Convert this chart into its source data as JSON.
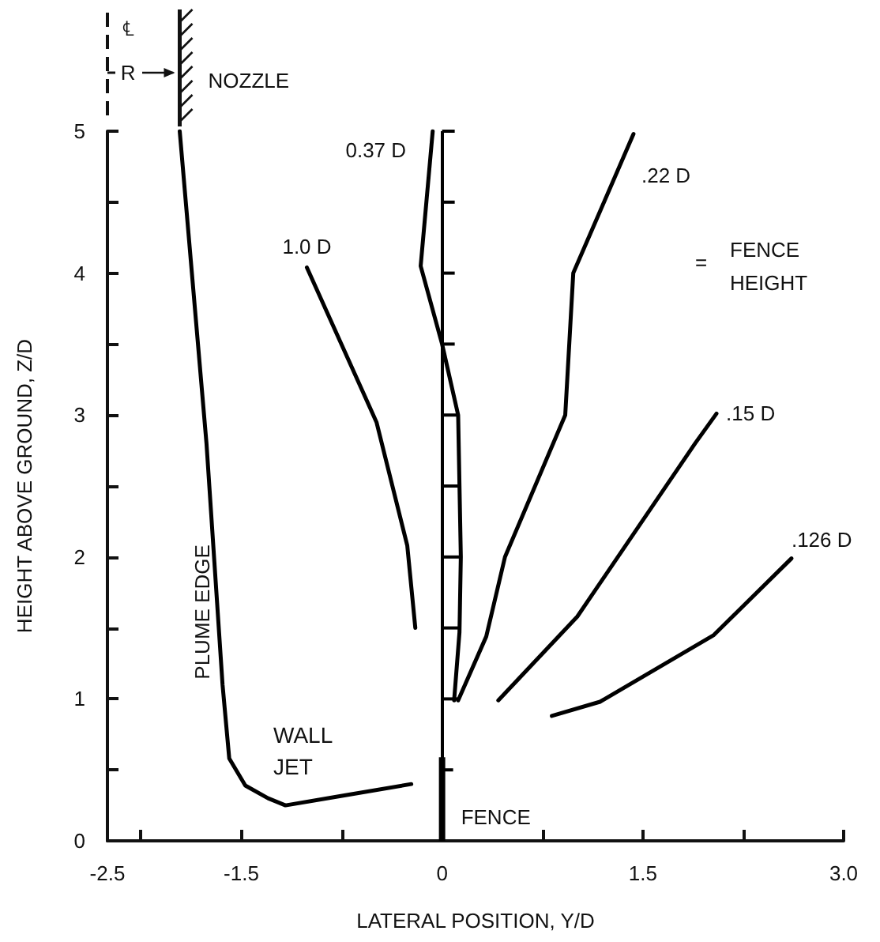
{
  "chart_data": {
    "type": "line",
    "xlabel": "LATERAL POSITION, Y/D",
    "ylabel": "HEIGHT ABOVE GROUND, Z/D",
    "xlim": [
      -2.5,
      3.0
    ],
    "ylim": [
      0,
      5
    ],
    "xticks": [
      -2.5,
      {
        "value": -2.25,
        "label": null
      },
      -1.5,
      {
        "value": -0.75,
        "label": null
      },
      0,
      {
        "value": 0.75,
        "label": null
      },
      1.5,
      {
        "value": 2.25,
        "label": null
      },
      {
        "value": 3,
        "label": "3.0"
      }
    ],
    "yticks": [
      0,
      {
        "value": 0.5,
        "label": null
      },
      1,
      {
        "value": 1.5,
        "label": null
      },
      2,
      {
        "value": 2.5,
        "label": null
      },
      3,
      {
        "value": 3.5,
        "label": null
      },
      4,
      {
        "value": 4.5,
        "label": null
      },
      5
    ],
    "series": [
      {
        "name": "PLUME EDGE",
        "color": "#000000",
        "x": [
          -1.96,
          -1.76,
          -1.64,
          -1.59,
          -1.47,
          -1.3,
          -1.17,
          -0.73,
          -0.23
        ],
        "values": [
          5.0,
          2.8,
          1.1,
          0.58,
          0.39,
          0.3,
          0.25,
          0.32,
          0.4
        ]
      },
      {
        "name": "1.0 D",
        "color": "#000000",
        "x": [
          -1.01,
          -0.49,
          -0.26,
          -0.2
        ],
        "values": [
          4.04,
          2.95,
          2.08,
          1.5
        ]
      },
      {
        "name": "0.37 D",
        "color": "#000000",
        "x": [
          -0.07,
          -0.16,
          0,
          0.12,
          0.14,
          0.13,
          0.09
        ],
        "values": [
          5.0,
          4.05,
          3.5,
          3.0,
          2.0,
          1.47,
          0.99
        ]
      },
      {
        "name": ".22 D",
        "color": "#000000",
        "x": [
          1.43,
          0.98,
          0.92,
          0.47,
          0.33,
          0.12
        ],
        "values": [
          4.98,
          4.0,
          3.0,
          2.0,
          1.44,
          0.99
        ]
      },
      {
        "name": ".15 D",
        "color": "#000000",
        "x": [
          2.05,
          1.89,
          1.01,
          0.42
        ],
        "values": [
          3.01,
          2.8,
          1.58,
          0.99
        ]
      },
      {
        "name": ".126 D",
        "color": "#000000",
        "x": [
          2.61,
          2.03,
          1.18,
          0.82
        ],
        "values": [
          1.99,
          1.45,
          0.98,
          0.88
        ]
      }
    ],
    "ref_lines": [
      {
        "axis": "x",
        "value": 0,
        "label": "FENCE",
        "color": "#000000"
      }
    ],
    "annotations": [
      "NOZZLE",
      "R",
      "℄",
      "WALL JET",
      "= FENCE HEIGHT"
    ]
  }
}
